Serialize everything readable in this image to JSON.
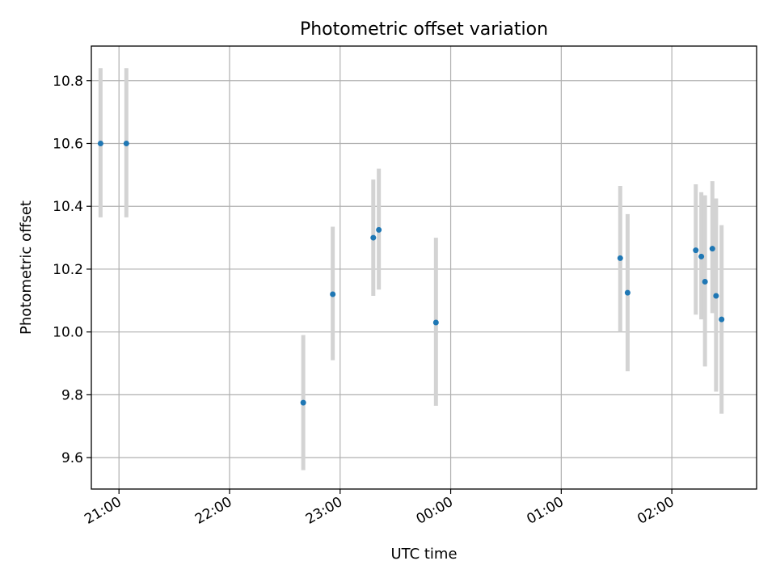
{
  "chart_data": {
    "type": "scatter",
    "title": "Photometric offset variation",
    "xlabel": "UTC time",
    "ylabel": "Photometric offset",
    "xlim": [
      "20:45",
      "02:46"
    ],
    "ylim": [
      9.5,
      10.91
    ],
    "x_ticks": [
      "21:00",
      "22:00",
      "23:00",
      "00:00",
      "01:00",
      "02:00"
    ],
    "y_ticks": [
      "9.6",
      "9.8",
      "10.0",
      "10.2",
      "10.4",
      "10.6",
      "10.8"
    ],
    "grid": true,
    "marker_color": "#1f77b4",
    "errorbar_color": "#d3d3d3",
    "points": [
      {
        "time": "20:50",
        "offset": 10.6,
        "err_low": 10.365,
        "err_high": 10.84
      },
      {
        "time": "21:04",
        "offset": 10.6,
        "err_low": 10.365,
        "err_high": 10.84
      },
      {
        "time": "22:40",
        "offset": 9.775,
        "err_low": 9.56,
        "err_high": 9.99
      },
      {
        "time": "22:56",
        "offset": 10.12,
        "err_low": 9.91,
        "err_high": 10.335
      },
      {
        "time": "23:18",
        "offset": 10.3,
        "err_low": 10.115,
        "err_high": 10.485
      },
      {
        "time": "23:21",
        "offset": 10.325,
        "err_low": 10.135,
        "err_high": 10.52
      },
      {
        "time": "23:52",
        "offset": 10.03,
        "err_low": 9.765,
        "err_high": 10.3
      },
      {
        "time": "01:32",
        "offset": 10.235,
        "err_low": 10.0,
        "err_high": 10.465
      },
      {
        "time": "01:36",
        "offset": 10.125,
        "err_low": 9.875,
        "err_high": 10.375
      },
      {
        "time": "02:13",
        "offset": 10.26,
        "err_low": 10.055,
        "err_high": 10.47
      },
      {
        "time": "02:16",
        "offset": 10.24,
        "err_low": 10.04,
        "err_high": 10.445
      },
      {
        "time": "02:18",
        "offset": 10.16,
        "err_low": 9.89,
        "err_high": 10.435
      },
      {
        "time": "02:22",
        "offset": 10.265,
        "err_low": 10.06,
        "err_high": 10.48
      },
      {
        "time": "02:24",
        "offset": 10.115,
        "err_low": 9.81,
        "err_high": 10.425
      },
      {
        "time": "02:27",
        "offset": 10.04,
        "err_low": 9.74,
        "err_high": 10.34
      }
    ]
  }
}
